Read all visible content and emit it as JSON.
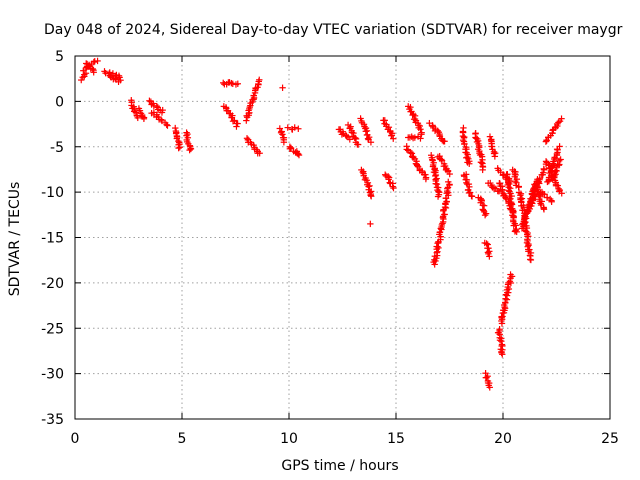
{
  "chart_data": {
    "type": "scatter",
    "title": "Day 048 of 2024, Sidereal Day-to-day VTEC variation (SDTVAR) for receiver maygr",
    "xlabel": "GPS time / hours",
    "ylabel": "SDTVAR / TECUs",
    "xlim": [
      0,
      25
    ],
    "ylim": [
      -35,
      5
    ],
    "xticks": [
      0,
      5,
      10,
      15,
      20,
      25
    ],
    "yticks": [
      5,
      0,
      -5,
      -10,
      -15,
      -20,
      -25,
      -30,
      -35
    ],
    "x_tick_labels": [
      "0",
      "5",
      "10",
      "15",
      "20",
      "25"
    ],
    "y_tick_labels": [
      "5",
      "0",
      "-5",
      "-10",
      "-15",
      "-20",
      "-25",
      "-30",
      "-35"
    ],
    "grid": true,
    "marker": "+",
    "marker_color": "#ff0000",
    "segments": [
      {
        "x0": 0.35,
        "x1": 0.5,
        "y0": 2.3,
        "y1": 3.2
      },
      {
        "x0": 0.4,
        "x1": 1.0,
        "y0": 3.5,
        "y1": 4.5
      },
      {
        "x0": 0.5,
        "x1": 0.9,
        "y0": 4.2,
        "y1": 3.2
      },
      {
        "x0": 1.4,
        "x1": 2.1,
        "y0": 3.3,
        "y1": 2.7
      },
      {
        "x0": 1.6,
        "x1": 2.1,
        "y0": 2.8,
        "y1": 2.2
      },
      {
        "x0": 2.6,
        "x1": 2.9,
        "y0": 0.0,
        "y1": -1.8
      },
      {
        "x0": 3.0,
        "x1": 3.2,
        "y0": -0.8,
        "y1": -2.0
      },
      {
        "x0": 3.5,
        "x1": 4.1,
        "y0": 0.0,
        "y1": -1.2
      },
      {
        "x0": 3.6,
        "x1": 4.3,
        "y0": -1.2,
        "y1": -2.6
      },
      {
        "x0": 4.7,
        "x1": 4.9,
        "y0": -3.0,
        "y1": -5.2
      },
      {
        "x0": 5.2,
        "x1": 5.4,
        "y0": -3.5,
        "y1": -5.5
      },
      {
        "x0": 6.9,
        "x1": 7.6,
        "y0": 2.0,
        "y1": 2.0
      },
      {
        "x0": 7.0,
        "x1": 7.6,
        "y0": -0.5,
        "y1": -2.7
      },
      {
        "x0": 8.0,
        "x1": 8.6,
        "y0": -2.0,
        "y1": 2.3
      },
      {
        "x0": 8.0,
        "x1": 8.6,
        "y0": -4.0,
        "y1": -5.8
      },
      {
        "x0": 9.7,
        "x1": 9.7,
        "y0": 1.5,
        "y1": 1.5
      },
      {
        "x0": 9.6,
        "x1": 9.8,
        "y0": -3.0,
        "y1": -4.5
      },
      {
        "x0": 10.0,
        "x1": 10.4,
        "y0": -3.0,
        "y1": -3.0
      },
      {
        "x0": 10.0,
        "x1": 10.5,
        "y0": -5.0,
        "y1": -6.0
      },
      {
        "x0": 12.3,
        "x1": 12.8,
        "y0": -3.0,
        "y1": -4.2
      },
      {
        "x0": 12.8,
        "x1": 13.2,
        "y0": -2.5,
        "y1": -4.8
      },
      {
        "x0": 13.4,
        "x1": 13.8,
        "y0": -2.0,
        "y1": -4.5
      },
      {
        "x0": 13.4,
        "x1": 13.9,
        "y0": -7.5,
        "y1": -10.5
      },
      {
        "x0": 13.8,
        "x1": 13.8,
        "y0": -13.5,
        "y1": -13.5
      },
      {
        "x0": 14.4,
        "x1": 14.9,
        "y0": -2.0,
        "y1": -4.0
      },
      {
        "x0": 14.5,
        "x1": 14.9,
        "y0": -8.0,
        "y1": -9.5
      },
      {
        "x0": 15.6,
        "x1": 16.2,
        "y0": -0.5,
        "y1": -3.5
      },
      {
        "x0": 15.6,
        "x1": 16.1,
        "y0": -4.0,
        "y1": -4.0
      },
      {
        "x0": 15.5,
        "x1": 16.4,
        "y0": -5.0,
        "y1": -8.5
      },
      {
        "x0": 16.6,
        "x1": 17.3,
        "y0": -2.5,
        "y1": -4.5
      },
      {
        "x0": 16.7,
        "x1": 17.0,
        "y0": -6.0,
        "y1": -10.5
      },
      {
        "x0": 16.8,
        "x1": 17.5,
        "y0": -18.0,
        "y1": -9.0
      },
      {
        "x0": 17.0,
        "x1": 17.5,
        "y0": -6.0,
        "y1": -8.0
      },
      {
        "x0": 18.1,
        "x1": 18.4,
        "y0": -3.0,
        "y1": -7.0
      },
      {
        "x0": 18.2,
        "x1": 18.5,
        "y0": -8.0,
        "y1": -10.5
      },
      {
        "x0": 18.7,
        "x1": 19.1,
        "y0": -3.5,
        "y1": -7.5
      },
      {
        "x0": 18.9,
        "x1": 19.2,
        "y0": -10.5,
        "y1": -12.5
      },
      {
        "x0": 19.2,
        "x1": 19.4,
        "y0": -15.5,
        "y1": -17.0
      },
      {
        "x0": 19.3,
        "x1": 19.8,
        "y0": -9.0,
        "y1": -10.0
      },
      {
        "x0": 19.2,
        "x1": 19.4,
        "y0": -30.0,
        "y1": -31.5
      },
      {
        "x0": 19.4,
        "x1": 19.6,
        "y0": -4.0,
        "y1": -6.0
      },
      {
        "x0": 19.8,
        "x1": 20.3,
        "y0": -7.5,
        "y1": -9.0
      },
      {
        "x0": 19.8,
        "x1": 20.5,
        "y0": -9.0,
        "y1": -12.5
      },
      {
        "x0": 19.8,
        "x1": 20.0,
        "y0": -25.0,
        "y1": -28.0
      },
      {
        "x0": 19.9,
        "x1": 20.4,
        "y0": -24.5,
        "y1": -19.0
      },
      {
        "x0": 20.2,
        "x1": 20.6,
        "y0": -8.0,
        "y1": -14.5
      },
      {
        "x0": 20.5,
        "x1": 20.7,
        "y0": -7.5,
        "y1": -9.5
      },
      {
        "x0": 20.8,
        "x1": 21.3,
        "y0": -10.0,
        "y1": -17.5
      },
      {
        "x0": 20.9,
        "x1": 21.6,
        "y0": -14.0,
        "y1": -8.5
      },
      {
        "x0": 21.0,
        "x1": 21.5,
        "y0": -13.0,
        "y1": -10.0
      },
      {
        "x0": 21.3,
        "x1": 21.9,
        "y0": -11.5,
        "y1": -7.5
      },
      {
        "x0": 21.5,
        "x1": 21.9,
        "y0": -9.0,
        "y1": -12.0
      },
      {
        "x0": 21.8,
        "x1": 22.3,
        "y0": -10.0,
        "y1": -11.0
      },
      {
        "x0": 22.0,
        "x1": 22.7,
        "y0": -4.5,
        "y1": -2.0
      },
      {
        "x0": 22.0,
        "x1": 22.7,
        "y0": -6.5,
        "y1": -10.0
      },
      {
        "x0": 22.1,
        "x1": 22.6,
        "y0": -9.0,
        "y1": -5.0
      },
      {
        "x0": 22.3,
        "x1": 22.7,
        "y0": -8.5,
        "y1": -6.5
      }
    ]
  }
}
